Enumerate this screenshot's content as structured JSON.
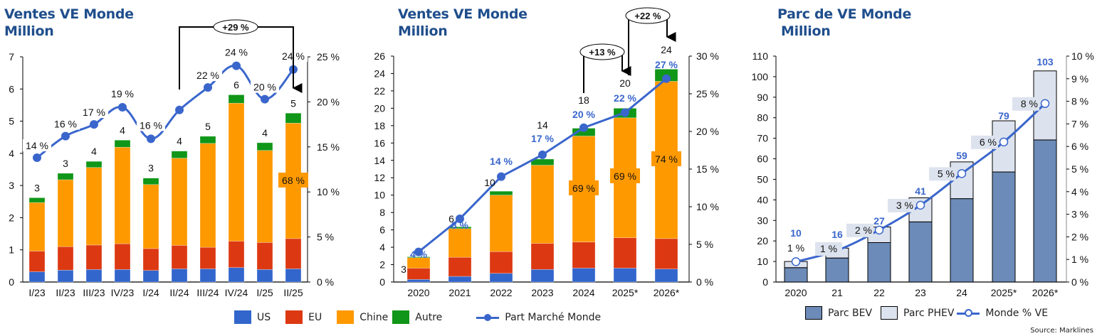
{
  "colors": {
    "us": "#3366cc",
    "eu": "#dc3912",
    "chine": "#ff9900",
    "autre": "#109618",
    "share_line": "#3a66cc",
    "title": "#1f4e8c",
    "bev": "#6d8bb8",
    "phev": "#dde3ee",
    "blue_label": "#3a66cc"
  },
  "legend_sales": {
    "us": "US",
    "eu": "EU",
    "chine": "Chine",
    "autre": "Autre",
    "share": "Part Marché Monde"
  },
  "legend_fleet": {
    "bev": "Parc BEV",
    "phev": "Parc PHEV",
    "share": "Monde % VE"
  },
  "source": "Source: Marklines",
  "chart_data": [
    {
      "type": "bar",
      "stacked": true,
      "title": "Ventes VE Monde",
      "subtitle": "Million",
      "categories": [
        "I/23",
        "II/23",
        "III/23",
        "IV/23",
        "I/24",
        "II/24",
        "III/24",
        "IV/24",
        "I/25",
        "II/25"
      ],
      "series": [
        {
          "name": "US",
          "values": [
            0.32,
            0.37,
            0.39,
            0.39,
            0.36,
            0.41,
            0.41,
            0.45,
            0.39,
            0.41
          ]
        },
        {
          "name": "EU",
          "values": [
            0.64,
            0.73,
            0.76,
            0.8,
            0.68,
            0.73,
            0.67,
            0.82,
            0.84,
            0.94
          ]
        },
        {
          "name": "Chine",
          "values": [
            1.51,
            2.08,
            2.41,
            3.0,
            1.99,
            2.71,
            3.23,
            4.29,
            2.86,
            3.59
          ]
        },
        {
          "name": "Autre",
          "values": [
            0.15,
            0.2,
            0.19,
            0.22,
            0.2,
            0.22,
            0.22,
            0.26,
            0.24,
            0.31
          ]
        }
      ],
      "totals_labels": [
        "3",
        "3",
        "4",
        "4",
        "3",
        "4",
        "5",
        "6",
        "4",
        "5"
      ],
      "line": {
        "name": "Part Marché Monde",
        "axis": "right",
        "values": [
          13.8,
          16.2,
          17.5,
          19.4,
          15.9,
          19.1,
          21.6,
          24.0,
          20.3,
          23.6
        ],
        "labels": [
          "14 %",
          "16 %",
          "17 %",
          "19 %",
          "16 %",
          "19 %",
          "22 %",
          "24 %",
          "20 %",
          "24 %"
        ],
        "visible_labels": [
          true,
          true,
          true,
          true,
          true,
          false,
          true,
          true,
          true,
          true
        ]
      },
      "annotations": [
        {
          "text": "+29 %",
          "from": "II/24",
          "to": "II/25"
        },
        {
          "text": "68 %",
          "category": "II/25",
          "series": "Chine"
        }
      ],
      "y_left": {
        "min": 0,
        "max": 7,
        "ticks": [
          "0",
          "1",
          "2",
          "3",
          "4",
          "5",
          "6",
          "7"
        ]
      },
      "y_right": {
        "min": 0,
        "max": 25,
        "ticks": [
          "0 %",
          "5 %",
          "10 %",
          "15 %",
          "20 %",
          "25 %"
        ]
      },
      "grid": false,
      "legend": "bottom"
    },
    {
      "type": "bar",
      "stacked": true,
      "title": "Ventes VE Monde",
      "subtitle": "Million",
      "categories": [
        "2020",
        "2021",
        "2022",
        "2023",
        "2024",
        "2025*",
        "2026*"
      ],
      "series": [
        {
          "name": "US",
          "values": [
            0.3,
            0.65,
            1.0,
            1.45,
            1.6,
            1.6,
            1.5
          ]
        },
        {
          "name": "EU",
          "values": [
            1.3,
            2.2,
            2.5,
            3.0,
            3.0,
            3.5,
            3.5
          ]
        },
        {
          "name": "Chine",
          "values": [
            1.2,
            3.3,
            6.5,
            9.0,
            12.2,
            13.8,
            18.1
          ]
        },
        {
          "name": "Autre",
          "values": [
            0.1,
            0.2,
            0.45,
            0.7,
            0.9,
            1.1,
            1.4
          ]
        }
      ],
      "totals_labels": [
        "3",
        "6",
        "10",
        "14",
        "18",
        "20",
        "24"
      ],
      "line": {
        "name": "Part Marché Monde",
        "axis": "right",
        "values": [
          4.0,
          8.4,
          14.0,
          16.9,
          20.5,
          22.5,
          27.0
        ],
        "labels": [
          "4 %",
          "8 %",
          "14 %",
          "17 %",
          "20 %",
          "22 %",
          "27 %"
        ]
      },
      "annotations": [
        {
          "text": "+13 %",
          "from": "2024",
          "to": "2025*"
        },
        {
          "text": "+22 %",
          "from": "2025*",
          "to": "2026*"
        },
        {
          "text": "69 %",
          "category": "2024",
          "series": "Chine"
        },
        {
          "text": "69 %",
          "category": "2025*",
          "series": "Chine"
        },
        {
          "text": "74 %",
          "category": "2026*",
          "series": "Chine"
        }
      ],
      "y_left": {
        "min": 0,
        "max": 26,
        "ticks": [
          "0",
          "2",
          "4",
          "6",
          "8",
          "10",
          "12",
          "14",
          "16",
          "18",
          "20",
          "22",
          "24",
          "26"
        ]
      },
      "y_right": {
        "min": 0,
        "max": 30,
        "ticks": [
          "0 %",
          "5 %",
          "10 %",
          "15 %",
          "20 %",
          "25 %",
          "30 %"
        ]
      },
      "grid": false,
      "legend": "bottom"
    },
    {
      "type": "bar",
      "stacked": true,
      "title": "Parc de VE Monde",
      "subtitle": "Million",
      "categories": [
        "2020",
        "21",
        "22",
        "23",
        "24",
        "2025*",
        "2026*"
      ],
      "series": [
        {
          "name": "Parc BEV",
          "values": [
            7,
            11.7,
            19.2,
            29.3,
            40.6,
            53.6,
            69.2
          ]
        },
        {
          "name": "Parc PHEV",
          "values": [
            3,
            4.8,
            7.6,
            11.7,
            17.9,
            24.9,
            33.6
          ]
        }
      ],
      "totals_labels": [
        "10",
        "16",
        "27",
        "41",
        "59",
        "79",
        "103"
      ],
      "line": {
        "name": "Monde % VE",
        "axis": "right",
        "values": [
          0.9,
          1.4,
          2.3,
          3.4,
          4.8,
          6.2,
          7.9
        ],
        "labels": [
          "1 %",
          "1 %",
          "2 %",
          "3 %",
          "5 %",
          "6 %",
          "8 %"
        ]
      },
      "y_left": {
        "min": 0,
        "max": 110,
        "ticks": [
          "0",
          "10",
          "20",
          "30",
          "40",
          "50",
          "60",
          "70",
          "80",
          "90",
          "100",
          "110"
        ]
      },
      "y_right": {
        "min": 0,
        "max": 10,
        "ticks": [
          "0 %",
          "1 %",
          "2 %",
          "3 %",
          "4 %",
          "5 %",
          "6 %",
          "7 %",
          "8 %",
          "9 %",
          "10 %"
        ]
      },
      "grid": false,
      "legend": "bottom"
    }
  ]
}
